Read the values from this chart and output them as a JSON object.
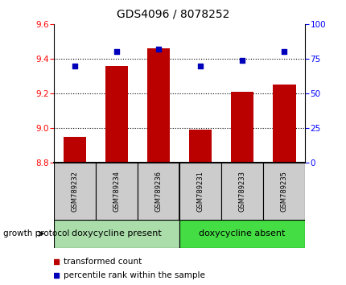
{
  "title": "GDS4096 / 8078252",
  "samples": [
    "GSM789232",
    "GSM789234",
    "GSM789236",
    "GSM789231",
    "GSM789233",
    "GSM789235"
  ],
  "transformed_counts": [
    8.95,
    9.36,
    9.46,
    8.99,
    9.21,
    9.25
  ],
  "percentile_ranks": [
    70,
    80,
    82,
    70,
    74,
    80
  ],
  "ylim_left": [
    8.8,
    9.6
  ],
  "ylim_right": [
    0,
    100
  ],
  "yticks_left": [
    8.8,
    9.0,
    9.2,
    9.4,
    9.6
  ],
  "yticks_right": [
    0,
    25,
    50,
    75,
    100
  ],
  "bar_color": "#bb0000",
  "dot_color": "#0000bb",
  "bar_width": 0.55,
  "groups": [
    {
      "label": "doxycycline present",
      "indices": [
        0,
        1,
        2
      ],
      "color": "#aaddaa"
    },
    {
      "label": "doxycycline absent",
      "indices": [
        3,
        4,
        5
      ],
      "color": "#44dd44"
    }
  ],
  "growth_protocol_label": "growth protocol",
  "legend_bar_label": "transformed count",
  "legend_dot_label": "percentile rank within the sample",
  "title_fontsize": 10,
  "tick_fontsize": 7.5,
  "sample_fontsize": 6,
  "group_fontsize": 8,
  "legend_fontsize": 7.5
}
